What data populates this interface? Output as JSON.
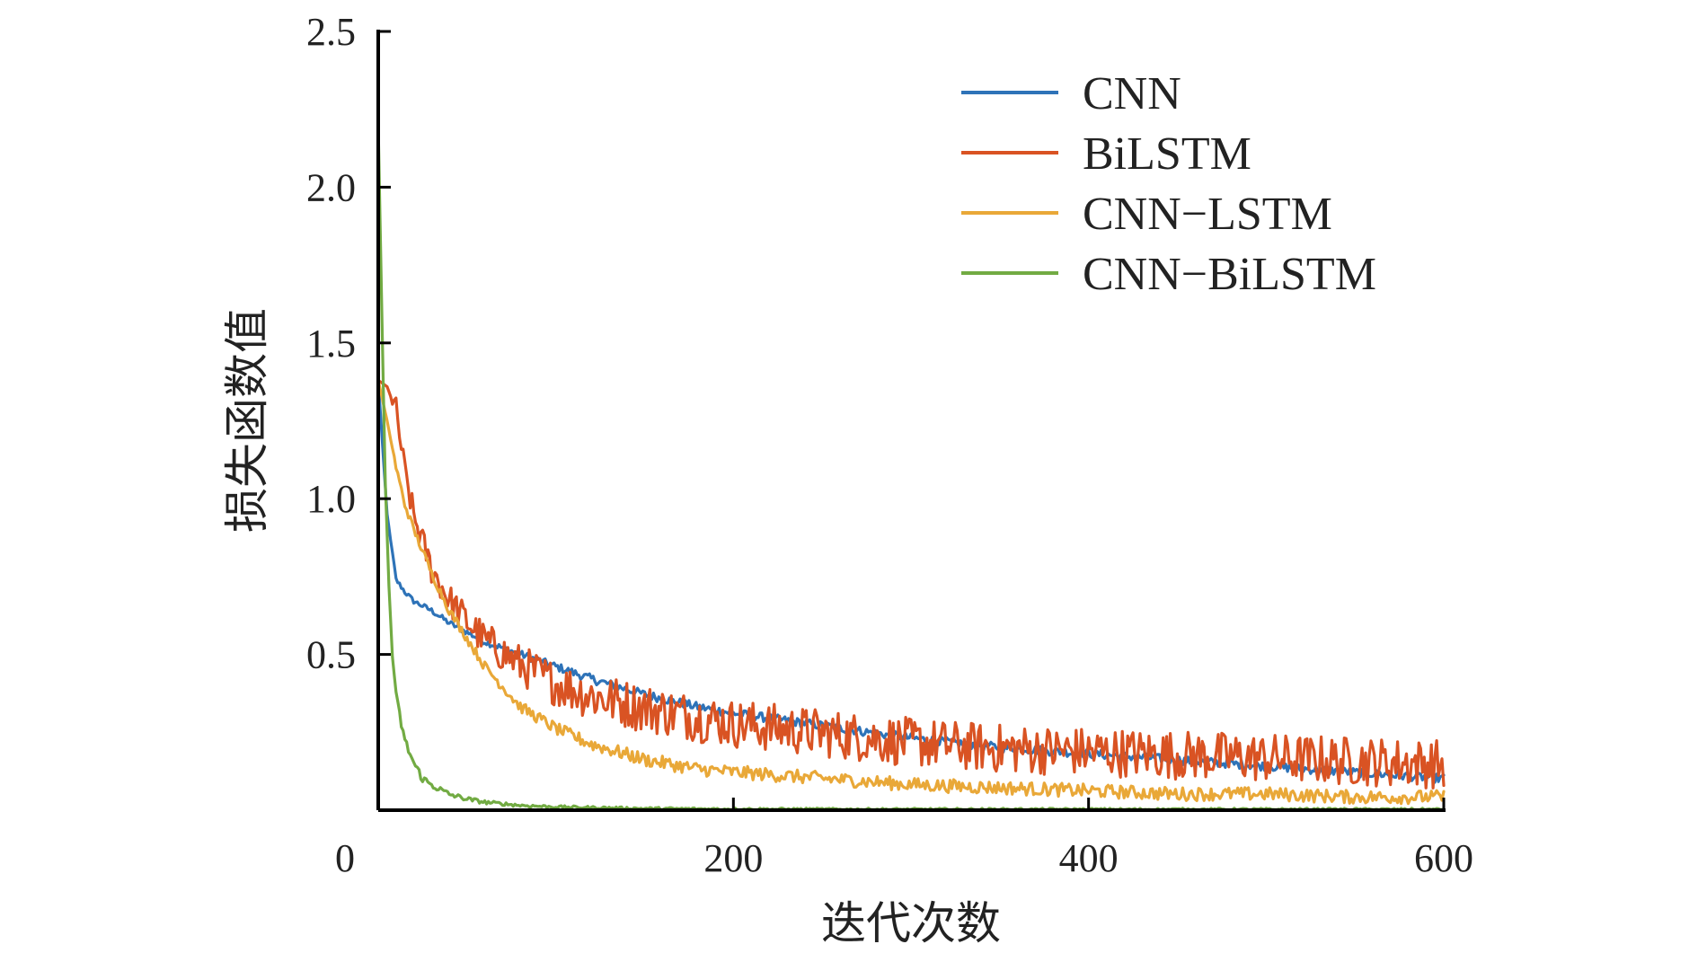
{
  "chart_data": {
    "type": "line",
    "xlabel": "迭代次数",
    "ylabel": "损失函数值",
    "xlim": [
      0,
      600
    ],
    "ylim": [
      0,
      2.5
    ],
    "xticks": [
      0,
      200,
      400,
      600
    ],
    "yticks": [
      0.5,
      1.0,
      1.5,
      2.0,
      2.5
    ],
    "xtick_labels": [
      "0",
      "200",
      "400",
      "600"
    ],
    "ytick_labels": [
      "0.5",
      "1.0",
      "1.5",
      "2.0",
      "2.5"
    ],
    "grid": false,
    "legend_position": "top-right",
    "series": [
      {
        "name": "CNN",
        "color": "#2e73b8",
        "x": [
          0,
          5,
          10,
          15,
          20,
          30,
          40,
          50,
          60,
          80,
          100,
          120,
          150,
          180,
          200,
          250,
          300,
          350,
          400,
          450,
          500,
          550,
          600
        ],
        "values": [
          1.38,
          0.95,
          0.74,
          0.7,
          0.67,
          0.64,
          0.6,
          0.57,
          0.54,
          0.5,
          0.46,
          0.42,
          0.37,
          0.33,
          0.31,
          0.27,
          0.23,
          0.2,
          0.18,
          0.16,
          0.14,
          0.12,
          0.1
        ]
      },
      {
        "name": "BiLSTM",
        "color": "#d95323",
        "x": [
          0,
          5,
          10,
          15,
          20,
          30,
          40,
          50,
          60,
          80,
          100,
          120,
          150,
          180,
          200,
          250,
          300,
          350,
          400,
          450,
          500,
          550,
          600
        ],
        "values": [
          1.38,
          1.36,
          1.28,
          1.08,
          0.94,
          0.77,
          0.67,
          0.6,
          0.54,
          0.46,
          0.4,
          0.36,
          0.32,
          0.29,
          0.27,
          0.24,
          0.21,
          0.19,
          0.18,
          0.17,
          0.16,
          0.15,
          0.14
        ]
      },
      {
        "name": "CNN−LSTM",
        "color": "#e9a838",
        "x": [
          0,
          5,
          10,
          15,
          20,
          30,
          40,
          50,
          60,
          80,
          100,
          120,
          150,
          180,
          200,
          250,
          300,
          350,
          400,
          450,
          500,
          550,
          600
        ],
        "values": [
          1.38,
          1.25,
          1.1,
          0.98,
          0.9,
          0.76,
          0.64,
          0.55,
          0.46,
          0.33,
          0.26,
          0.21,
          0.16,
          0.13,
          0.12,
          0.1,
          0.08,
          0.07,
          0.06,
          0.05,
          0.05,
          0.04,
          0.04
        ]
      },
      {
        "name": "CNN−BiLSTM",
        "color": "#72ab43",
        "x": [
          0,
          2,
          4,
          6,
          8,
          10,
          15,
          20,
          25,
          30,
          40,
          50,
          60,
          80,
          100,
          150,
          200,
          300,
          400,
          500,
          600
        ],
        "values": [
          2.2,
          1.6,
          1.05,
          0.72,
          0.5,
          0.36,
          0.22,
          0.15,
          0.1,
          0.08,
          0.05,
          0.035,
          0.025,
          0.015,
          0.01,
          0.005,
          0.003,
          0.002,
          0.002,
          0.002,
          0.002
        ]
      }
    ]
  }
}
